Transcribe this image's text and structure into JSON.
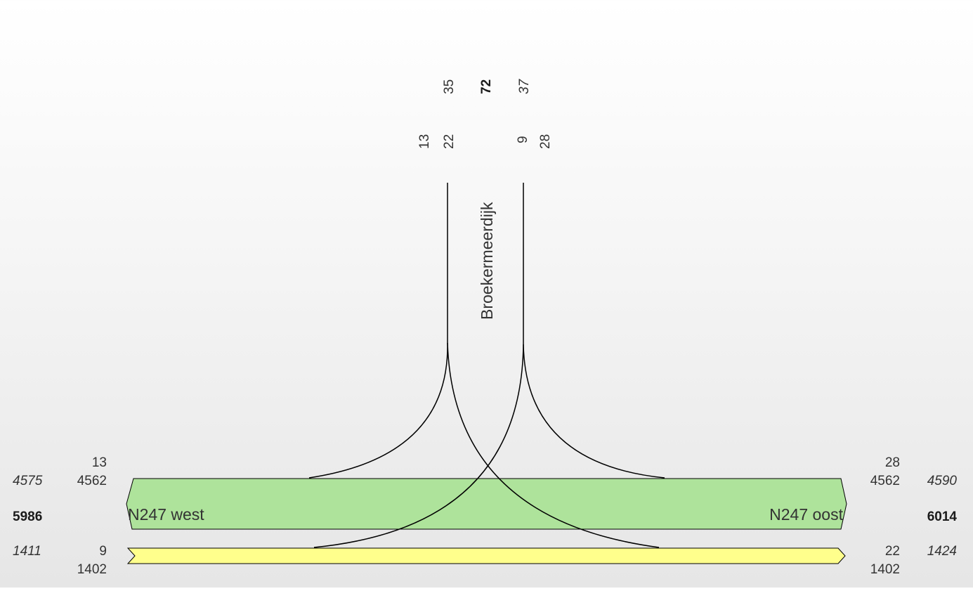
{
  "colors": {
    "main_road": "#aee39b",
    "side_lane": "#ffff8c",
    "line": "#000000",
    "text": "#333333"
  },
  "north": {
    "road_name": "Broekermeerdijk",
    "total": "72",
    "in_total": "35",
    "out_total": "37",
    "in_left": "13",
    "in_right": "22",
    "out_left": "9",
    "out_right": "28"
  },
  "west": {
    "road_name": "N247 west",
    "total": "5986",
    "main_total": "4575",
    "main_through": "4562",
    "main_turn": "13",
    "side_total": "1411",
    "side_turn": "9",
    "side_through": "1402"
  },
  "east": {
    "road_name": "N247 oost",
    "total": "6014",
    "main_total": "4590",
    "main_through": "4562",
    "main_turn": "28",
    "side_total": "1424",
    "side_turn": "22",
    "side_through": "1402"
  }
}
